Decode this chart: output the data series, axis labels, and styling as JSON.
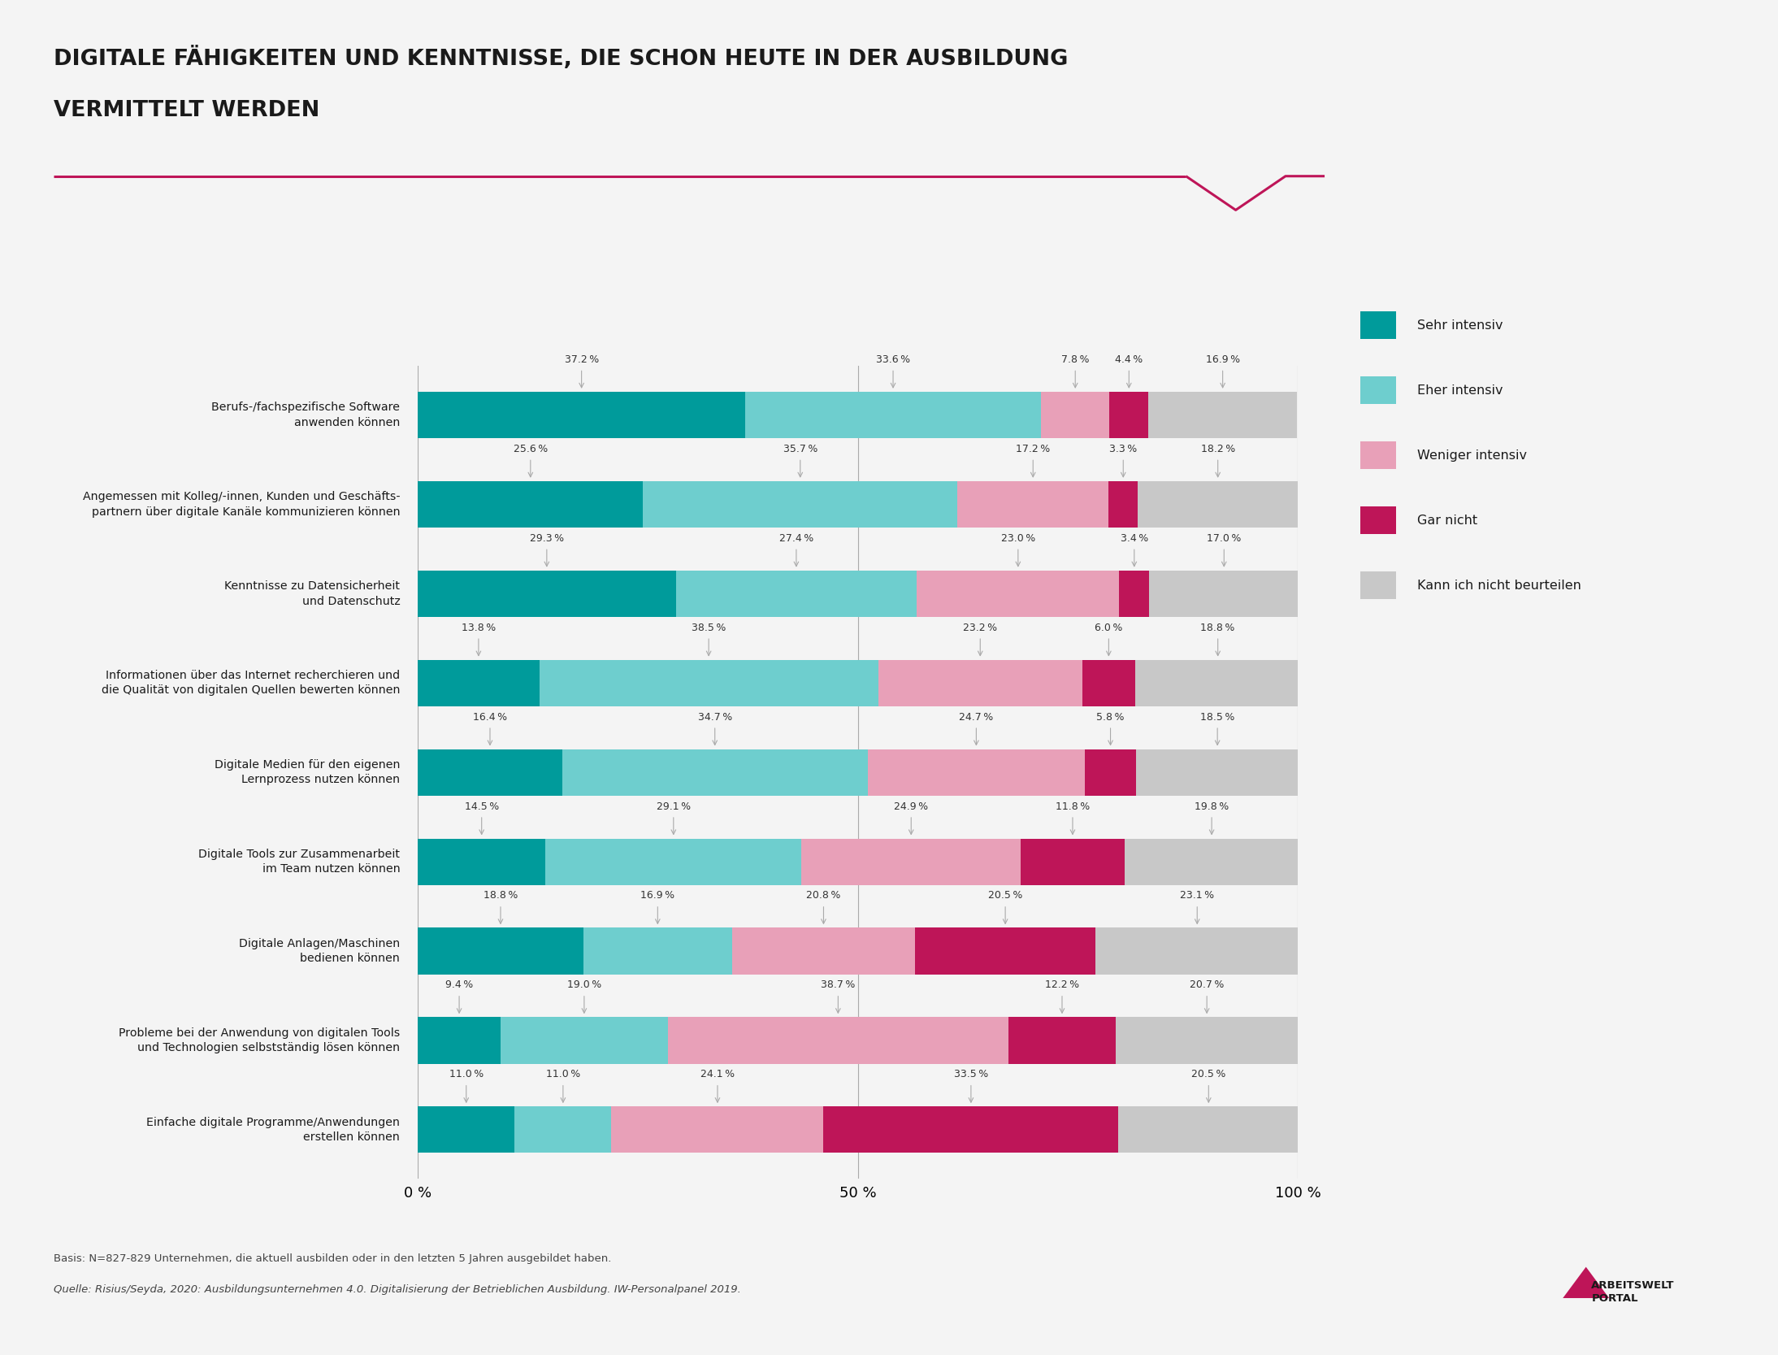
{
  "title_line1": "DIGITALE FÄHIGKEITEN UND KENNTNISSE, DIE SCHON HEUTE IN DER AUSBILDUNG",
  "title_line2": "VERMITTELT WERDEN",
  "categories": [
    "Berufs-/fachspezifische Software\nanwenden können",
    "Angemessen mit Kolleg/-innen, Kunden und Geschäfts-\npartnern über digitale Kanäle kommunizieren können",
    "Kenntnisse zu Datensicherheit\nund Datenschutz",
    "Informationen über das Internet recherchieren und\ndie Qualität von digitalen Quellen bewerten können",
    "Digitale Medien für den eigenen\nLernprozess nutzen können",
    "Digitale Tools zur Zusammenarbeit\nim Team nutzen können",
    "Digitale Anlagen/Maschinen\nbedienen können",
    "Probleme bei der Anwendung von digitalen Tools\nund Technologien selbstständig lösen können",
    "Einfache digitale Programme/Anwendungen\nerstellen können"
  ],
  "sehr_intensiv": [
    37.2,
    25.6,
    29.3,
    13.8,
    16.4,
    14.5,
    18.8,
    9.4,
    11.0
  ],
  "eher_intensiv": [
    33.6,
    35.7,
    27.4,
    38.5,
    34.7,
    29.1,
    16.9,
    19.0,
    11.0
  ],
  "weniger_intensiv": [
    7.8,
    17.2,
    23.0,
    23.2,
    24.7,
    24.9,
    20.8,
    38.7,
    24.1
  ],
  "gar_nicht": [
    4.4,
    3.3,
    3.4,
    6.0,
    5.8,
    11.8,
    20.5,
    12.2,
    33.5
  ],
  "kann_nicht": [
    16.9,
    18.2,
    17.0,
    18.8,
    18.5,
    19.8,
    23.1,
    20.7,
    20.5
  ],
  "colors": {
    "sehr_intensiv": "#009B9B",
    "eher_intensiv": "#6ECECE",
    "weniger_intensiv": "#E8A0B8",
    "gar_nicht": "#BE1558",
    "kann_nicht": "#C8C8C8"
  },
  "legend_labels": [
    "Sehr intensiv",
    "Eher intensiv",
    "Weniger intensiv",
    "Gar nicht",
    "Kann ich nicht beurteilen"
  ],
  "xtick_labels": [
    "0 %",
    "50 %",
    "100 %"
  ],
  "bg_color": "#F4F4F4",
  "title_color": "#1A1A1A",
  "bar_height": 0.52,
  "separator_line_color": "#BE1558",
  "basis_text": "Basis: N=827-829 Unternehmen, die aktuell ausbilden oder in den letzten 5 Jahren ausgebildet haben.",
  "quelle_text": "Quelle: Risius/Seyda, 2020: Ausbildungsunternehmen 4.0. Digitalisierung der Betrieblichen Ausbildung. IW-Personalpanel 2019."
}
